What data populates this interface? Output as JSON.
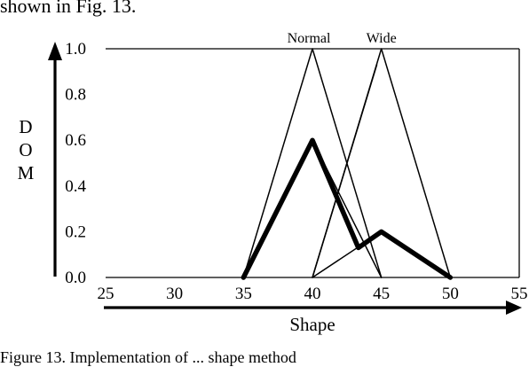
{
  "top_text": "shown in Fig. 13.",
  "caption": "Figure 13. Implementation of ... shape method",
  "chart_data": {
    "type": "line",
    "ylabel": "D O M",
    "xlabel": "Shape",
    "xlim": [
      25,
      55
    ],
    "ylim": [
      0,
      1
    ],
    "x_ticks": [
      "25",
      "30",
      "35",
      "40",
      "45",
      "50",
      "55"
    ],
    "y_ticks": [
      "0.0",
      "0.2",
      "0.4",
      "0.6",
      "0.8",
      "1.0"
    ],
    "membership_labels": [
      {
        "text": "Normal",
        "x": 40
      },
      {
        "text": "Wide",
        "x": 45
      }
    ],
    "series": [
      {
        "style": "thin",
        "x": [
          35,
          40,
          45
        ],
        "y": [
          0,
          1,
          0
        ]
      },
      {
        "style": "thin",
        "x": [
          40,
          45,
          50
        ],
        "y": [
          0,
          1,
          0
        ]
      },
      {
        "style": "thin",
        "x": [
          35,
          40,
          45
        ],
        "y": [
          0,
          0.6,
          0
        ]
      },
      {
        "style": "thin",
        "x": [
          40,
          45,
          50
        ],
        "y": [
          0,
          0.2,
          0
        ]
      },
      {
        "style": "thin",
        "x": [
          40,
          44.67
        ],
        "y": [
          0,
          0.93
        ]
      },
      {
        "style": "bold",
        "x": [
          35,
          40,
          43.33,
          45,
          50
        ],
        "y": [
          0,
          0.6,
          0.13,
          0.2,
          0
        ]
      }
    ]
  }
}
